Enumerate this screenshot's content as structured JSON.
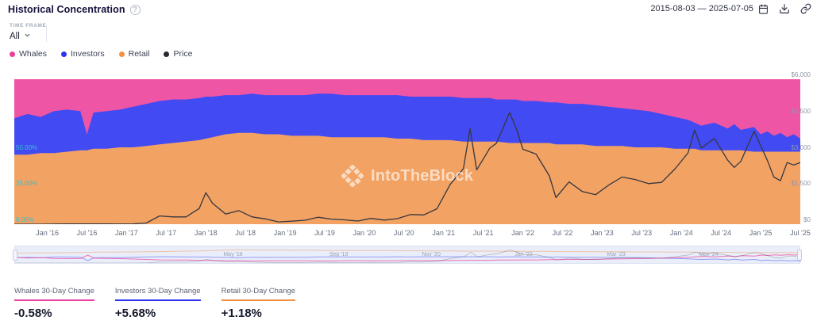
{
  "header": {
    "title": "Historical Concentration",
    "help_icon": "question-mark",
    "date_range": "2015-08-03 — 2025-07-05"
  },
  "controls": {
    "time_frame_label": "TIME FRAME",
    "time_frame_value": "All"
  },
  "legend": {
    "items": [
      {
        "label": "Whales",
        "color": "#ec3f9e"
      },
      {
        "label": "Investors",
        "color": "#2b34f1"
      },
      {
        "label": "Retail",
        "color": "#f18f42"
      },
      {
        "label": "Price",
        "color": "#26272f"
      }
    ]
  },
  "watermark": {
    "text": "IntoTheBlock"
  },
  "stats": [
    {
      "label": "Whales 30-Day Change",
      "value": "-0.58%",
      "color": "#ec3f9e"
    },
    {
      "label": "Investors 30-Day Change",
      "value": "+5.68%",
      "color": "#2b34f1"
    },
    {
      "label": "Retail 30-Day Change",
      "value": "+1.18%",
      "color": "#f18f42"
    }
  ],
  "chart_data": {
    "type": "area",
    "stacking": "percent",
    "title": "Historical Concentration",
    "x_dates": [
      "2015-08",
      "2015-10",
      "2015-12",
      "2016-02",
      "2016-04",
      "2016-06",
      "2016-07",
      "2016-08",
      "2016-10",
      "2016-12",
      "2017-02",
      "2017-04",
      "2017-06",
      "2017-08",
      "2017-10",
      "2017-12",
      "2018-01",
      "2018-02",
      "2018-04",
      "2018-06",
      "2018-08",
      "2018-10",
      "2018-12",
      "2019-02",
      "2019-04",
      "2019-06",
      "2019-08",
      "2019-10",
      "2019-12",
      "2020-02",
      "2020-04",
      "2020-06",
      "2020-08",
      "2020-10",
      "2020-12",
      "2021-02",
      "2021-04",
      "2021-05",
      "2021-06",
      "2021-08",
      "2021-09",
      "2021-11",
      "2021-12",
      "2022-01",
      "2022-03",
      "2022-05",
      "2022-06",
      "2022-08",
      "2022-10",
      "2022-12",
      "2023-02",
      "2023-04",
      "2023-06",
      "2023-08",
      "2023-10",
      "2023-12",
      "2024-02",
      "2024-03",
      "2024-04",
      "2024-06",
      "2024-08",
      "2024-09",
      "2024-10",
      "2024-12",
      "2025-01",
      "2025-02",
      "2025-03",
      "2025-04",
      "2025-05",
      "2025-06",
      "2025-07"
    ],
    "series": [
      {
        "name": "Whales",
        "type": "area",
        "axis": "percent",
        "values": [
          27,
          24,
          26,
          22,
          21,
          22,
          38,
          23,
          22,
          21,
          19,
          17,
          15,
          14,
          14,
          13,
          12,
          12,
          11,
          11,
          10,
          11,
          11,
          11,
          11,
          10,
          10,
          11,
          11,
          11,
          11,
          11,
          12,
          12,
          12,
          12,
          13,
          13,
          13,
          13,
          14,
          14,
          14,
          15,
          15,
          16,
          16,
          17,
          17,
          18,
          19,
          20,
          21,
          22,
          24,
          26,
          28,
          30,
          32,
          30,
          34,
          31,
          35,
          33,
          38,
          36,
          39,
          37,
          40,
          38,
          41
        ]
      },
      {
        "name": "Investors",
        "type": "area",
        "axis": "percent",
        "values": [
          25,
          28,
          25,
          29,
          29,
          27,
          11,
          25,
          26,
          26,
          28,
          29,
          30,
          30,
          29,
          29,
          29,
          28,
          27,
          26,
          27,
          27,
          27,
          28,
          28,
          29,
          30,
          29,
          29,
          29,
          29,
          30,
          29,
          30,
          30,
          30,
          30,
          30,
          30,
          30,
          29,
          30,
          30,
          29,
          29,
          28,
          29,
          28,
          28,
          28,
          27,
          26,
          26,
          25,
          23,
          22,
          20,
          18,
          17,
          19,
          15,
          18,
          14,
          17,
          12,
          14,
          11,
          13,
          10,
          12,
          9
        ]
      },
      {
        "name": "Retail",
        "type": "area",
        "axis": "percent",
        "values": [
          48,
          48,
          49,
          49,
          50,
          51,
          51,
          52,
          52,
          53,
          53,
          54,
          55,
          56,
          57,
          58,
          59,
          60,
          62,
          63,
          63,
          62,
          62,
          61,
          61,
          61,
          60,
          60,
          60,
          60,
          60,
          59,
          59,
          58,
          58,
          58,
          57,
          57,
          57,
          57,
          57,
          56,
          56,
          56,
          56,
          56,
          55,
          55,
          55,
          54,
          54,
          54,
          53,
          53,
          53,
          52,
          52,
          52,
          51,
          51,
          51,
          51,
          51,
          50,
          50,
          50,
          50,
          50,
          50,
          50,
          50
        ]
      },
      {
        "name": "Price",
        "type": "line",
        "axis": "price",
        "values": [
          1,
          0.6,
          0.9,
          6,
          9,
          14,
          11,
          11,
          12,
          8,
          13,
          50,
          340,
          300,
          300,
          650,
          1300,
          870,
          420,
          560,
          300,
          220,
          95,
          125,
          165,
          290,
          210,
          180,
          130,
          240,
          170,
          230,
          400,
          385,
          640,
          1650,
          2300,
          3950,
          2250,
          3150,
          3350,
          4620,
          3950,
          3100,
          2900,
          2000,
          1100,
          1750,
          1350,
          1220,
          1620,
          1950,
          1850,
          1680,
          1730,
          2280,
          2950,
          3900,
          3150,
          3550,
          2650,
          2350,
          2600,
          3850,
          3250,
          2650,
          1950,
          1800,
          2550,
          2450,
          2550
        ]
      }
    ],
    "percent_axis": {
      "min": 0,
      "max": 100,
      "ticks": [
        {
          "label": "50.00%",
          "value": 50
        },
        {
          "label": "25.00%",
          "value": 25
        },
        {
          "label": "0.00%",
          "value": 0
        }
      ]
    },
    "price_axis": {
      "min": 0,
      "max": 6000,
      "ticks": [
        {
          "label": "$6,000",
          "value": 6000
        },
        {
          "label": "$4,500",
          "value": 4500
        },
        {
          "label": "$3,000",
          "value": 3000
        },
        {
          "label": "$1,500",
          "value": 1500
        },
        {
          "label": "$0",
          "value": 0
        }
      ]
    },
    "xticks": [
      {
        "label": "Jan '16",
        "date": "2016-01"
      },
      {
        "label": "Jul '16",
        "date": "2016-07"
      },
      {
        "label": "Jan '17",
        "date": "2017-01"
      },
      {
        "label": "Jul '17",
        "date": "2017-07"
      },
      {
        "label": "Jan '18",
        "date": "2018-01"
      },
      {
        "label": "Jul '18",
        "date": "2018-07"
      },
      {
        "label": "Jan '19",
        "date": "2019-01"
      },
      {
        "label": "Jul '19",
        "date": "2019-07"
      },
      {
        "label": "Jan '20",
        "date": "2020-01"
      },
      {
        "label": "Jul '20",
        "date": "2020-07"
      },
      {
        "label": "Jan '21",
        "date": "2021-01"
      },
      {
        "label": "Jul '21",
        "date": "2021-07"
      },
      {
        "label": "Jan '22",
        "date": "2022-01"
      },
      {
        "label": "Jul '22",
        "date": "2022-07"
      },
      {
        "label": "Jan '23",
        "date": "2023-01"
      },
      {
        "label": "Jul '23",
        "date": "2023-07"
      },
      {
        "label": "Jan '24",
        "date": "2024-01"
      },
      {
        "label": "Jul '24",
        "date": "2024-07"
      },
      {
        "label": "Jan '25",
        "date": "2025-01"
      },
      {
        "label": "Jul '25",
        "date": "2025-07"
      }
    ],
    "navigator_ticks": [
      {
        "label": "May '18",
        "date": "2018-05"
      },
      {
        "label": "Sep '19",
        "date": "2019-09"
      },
      {
        "label": "Nov '20",
        "date": "2020-11"
      },
      {
        "label": "Jan '22",
        "date": "2022-01"
      },
      {
        "label": "Mar '23",
        "date": "2023-03"
      },
      {
        "label": "May '24",
        "date": "2024-05"
      }
    ],
    "colors": {
      "whales": "#ee55a5",
      "investors": "#424af2",
      "retail": "#f2a263",
      "price": "#35373f"
    },
    "legend_position": "top-left",
    "grid": false
  }
}
